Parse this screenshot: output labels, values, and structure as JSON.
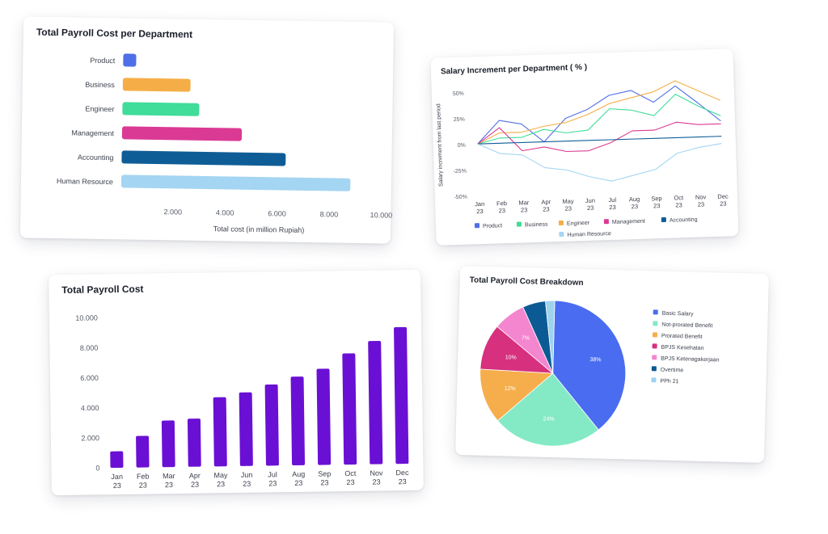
{
  "chart_data": [
    {
      "type": "bar",
      "orientation": "horizontal",
      "title": "Total Payroll Cost per Department",
      "categories": [
        "Product",
        "Business",
        "Engineer",
        "Management",
        "Accounting",
        "Human Resource"
      ],
      "values": [
        500,
        2600,
        2950,
        4600,
        6300,
        8800
      ],
      "colors": [
        "#4f6fe8",
        "#f5ae47",
        "#3fdc9a",
        "#da3a94",
        "#0f5d96",
        "#a4d5f2"
      ],
      "xlabel": "Total cost (in million Rupiah)",
      "xticks": [
        2000,
        4000,
        6000,
        8000,
        10000
      ],
      "xtick_labels": [
        "2.000",
        "4.000",
        "6.000",
        "8.000",
        "10.000"
      ],
      "xlim": [
        0,
        10000
      ],
      "grid": false
    },
    {
      "type": "line",
      "title": "Salary Increment per Department ( % )",
      "ylabel": "Salary increment from last period",
      "categories": [
        "Jan 23",
        "Feb 23",
        "Mar 23",
        "Apr 23",
        "May 23",
        "Jun 23",
        "Jul 23",
        "Aug 23",
        "Sep 23",
        "Oct 23",
        "Nov 23",
        "Dec 23"
      ],
      "x_labels": [
        [
          "Jan",
          "23"
        ],
        [
          "Feb",
          "23"
        ],
        [
          "Mar",
          "23"
        ],
        [
          "Apr",
          "23"
        ],
        [
          "May",
          "23"
        ],
        [
          "Jun",
          "23"
        ],
        [
          "Jul",
          "23"
        ],
        [
          "Aug",
          "23"
        ],
        [
          "Sep",
          "23"
        ],
        [
          "Oct",
          "23"
        ],
        [
          "Nov",
          "23"
        ],
        [
          "Dec",
          "23"
        ]
      ],
      "yticks": [
        50,
        25,
        0,
        -25,
        -50
      ],
      "ytick_labels": [
        "50%",
        "25%",
        "0%",
        "-25%",
        "-50%"
      ],
      "ylim": [
        -50,
        50
      ],
      "legend_position": "bottom",
      "series": [
        {
          "name": "Product",
          "color": "#4f6fe8",
          "values": [
            0,
            22,
            18,
            0,
            22,
            30,
            43,
            47,
            35,
            50,
            33,
            15
          ]
        },
        {
          "name": "Business",
          "color": "#3fdc9a",
          "values": [
            0,
            5,
            5,
            12,
            8,
            10,
            30,
            28,
            22,
            42,
            30,
            20
          ]
        },
        {
          "name": "Engineer",
          "color": "#f5ae47",
          "values": [
            0,
            10,
            10,
            15,
            18,
            25,
            35,
            40,
            45,
            55,
            45,
            35
          ]
        },
        {
          "name": "Management",
          "color": "#da3a94",
          "values": [
            0,
            15,
            -8,
            -5,
            -10,
            -10,
            -3,
            8,
            8,
            15,
            12,
            12
          ]
        },
        {
          "name": "Accounting",
          "color": "#0f5d96",
          "values": [
            0,
            0,
            0,
            0,
            0,
            0,
            0,
            0,
            0,
            0,
            0,
            0
          ]
        },
        {
          "name": "Human Resource",
          "color": "#a4d5f2",
          "values": [
            0,
            -10,
            -12,
            -25,
            -28,
            -35,
            -40,
            -35,
            -30,
            -15,
            -10,
            -7
          ]
        }
      ],
      "grid": false
    },
    {
      "type": "bar",
      "title": "Total Payroll Cost",
      "categories": [
        "Jan 23",
        "Feb 23",
        "Mar 23",
        "Apr 23",
        "May 23",
        "Jun 23",
        "Jul 23",
        "Aug 23",
        "Sep 23",
        "Oct 23",
        "Nov 23",
        "Dec 23"
      ],
      "x_labels": [
        [
          "Jan",
          "23"
        ],
        [
          "Feb",
          "23"
        ],
        [
          "Mar",
          "23"
        ],
        [
          "Apr",
          "23"
        ],
        [
          "May",
          "23"
        ],
        [
          "Jun",
          "23"
        ],
        [
          "Jul",
          "23"
        ],
        [
          "Aug",
          "23"
        ],
        [
          "Sep",
          "23"
        ],
        [
          "Oct",
          "23"
        ],
        [
          "Nov",
          "23"
        ],
        [
          "Dec",
          "23"
        ]
      ],
      "values": [
        1100,
        2100,
        3100,
        3200,
        4600,
        4900,
        5400,
        5900,
        6400,
        7400,
        8200,
        9100
      ],
      "color": "#6a10d4",
      "yticks": [
        0,
        2000,
        4000,
        6000,
        8000,
        10000
      ],
      "ytick_labels": [
        "0",
        "2.000",
        "4.000",
        "6.000",
        "8.000",
        "10.000"
      ],
      "ylim": [
        0,
        10000
      ],
      "grid": false
    },
    {
      "type": "pie",
      "title": "Total Payroll Cost Breakdown",
      "labels": [
        "Basic Salary",
        "Not-prorated Benefit",
        "Prorated Benefit",
        "BPJS Kesehatan",
        "BPJS Ketenagakerjaan",
        "Overtime",
        "PPh 21"
      ],
      "values": [
        38,
        24,
        12,
        10,
        7,
        5,
        2
      ],
      "slice_labels": [
        "38%",
        "24%",
        "12%",
        "10%",
        "7%",
        "",
        ""
      ],
      "colors": [
        "#4a6cf0",
        "#84eac6",
        "#f6ae4c",
        "#d6307e",
        "#f486cf",
        "#0c5a94",
        "#9ed3ee"
      ],
      "legend_position": "right"
    }
  ]
}
